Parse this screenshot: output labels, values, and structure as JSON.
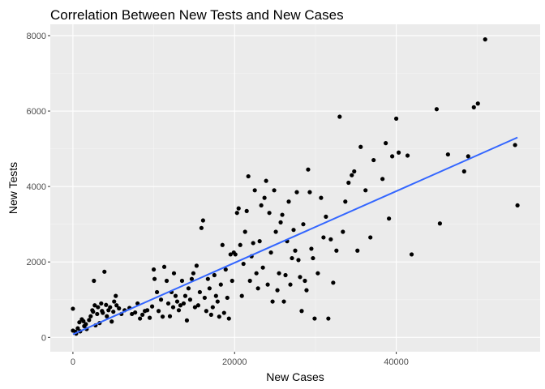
{
  "chart_data": {
    "type": "scatter",
    "title": "Correlation Between New Tests and New Cases",
    "xlabel": "New Cases",
    "ylabel": "New Tests",
    "xlim": [
      -2800,
      57800
    ],
    "ylim": [
      -380,
      8300
    ],
    "x_ticks": [
      0,
      20000,
      40000
    ],
    "x_tick_labels": [
      "0",
      "20000",
      "40000"
    ],
    "y_ticks": [
      0,
      2000,
      4000,
      6000,
      8000
    ],
    "y_tick_labels": [
      "0",
      "2000",
      "4000",
      "6000",
      "8000"
    ],
    "grid": true,
    "legend": "none",
    "colors": {
      "panel": "#ebebeb",
      "grid_major": "#ffffff",
      "points": "#000000",
      "trend_line": "#3366ff"
    },
    "trend_line": {
      "x": [
        0,
        55000
      ],
      "y": [
        80,
        5300
      ]
    },
    "points": [
      [
        0,
        760
      ],
      [
        0,
        180
      ],
      [
        300,
        150
      ],
      [
        400,
        100
      ],
      [
        600,
        240
      ],
      [
        800,
        400
      ],
      [
        900,
        160
      ],
      [
        1100,
        480
      ],
      [
        1300,
        430
      ],
      [
        1400,
        300
      ],
      [
        1600,
        350
      ],
      [
        1700,
        220
      ],
      [
        2000,
        460
      ],
      [
        2200,
        560
      ],
      [
        2400,
        720
      ],
      [
        2500,
        680
      ],
      [
        2600,
        1500
      ],
      [
        2700,
        850
      ],
      [
        2800,
        320
      ],
      [
        3000,
        620
      ],
      [
        3100,
        800
      ],
      [
        3300,
        380
      ],
      [
        3500,
        900
      ],
      [
        3600,
        700
      ],
      [
        3700,
        650
      ],
      [
        3900,
        1740
      ],
      [
        4100,
        860
      ],
      [
        4200,
        560
      ],
      [
        4400,
        720
      ],
      [
        4600,
        800
      ],
      [
        4800,
        420
      ],
      [
        5000,
        680
      ],
      [
        5100,
        950
      ],
      [
        5300,
        1100
      ],
      [
        5400,
        850
      ],
      [
        5700,
        770
      ],
      [
        6000,
        620
      ],
      [
        6400,
        720
      ],
      [
        7000,
        780
      ],
      [
        7300,
        620
      ],
      [
        7700,
        660
      ],
      [
        8000,
        900
      ],
      [
        8300,
        500
      ],
      [
        8600,
        600
      ],
      [
        8900,
        700
      ],
      [
        9200,
        720
      ],
      [
        9500,
        520
      ],
      [
        9800,
        820
      ],
      [
        10000,
        1800
      ],
      [
        10100,
        1550
      ],
      [
        10400,
        1200
      ],
      [
        10600,
        700
      ],
      [
        10900,
        1000
      ],
      [
        11100,
        550
      ],
      [
        11300,
        1870
      ],
      [
        11600,
        1500
      ],
      [
        11800,
        900
      ],
      [
        12000,
        560
      ],
      [
        12200,
        1200
      ],
      [
        12400,
        800
      ],
      [
        12500,
        1700
      ],
      [
        12700,
        1100
      ],
      [
        12900,
        950
      ],
      [
        13100,
        720
      ],
      [
        13300,
        850
      ],
      [
        13500,
        1500
      ],
      [
        13700,
        900
      ],
      [
        13900,
        1100
      ],
      [
        14100,
        450
      ],
      [
        14300,
        1300
      ],
      [
        14500,
        1000
      ],
      [
        14700,
        1550
      ],
      [
        14900,
        1700
      ],
      [
        15100,
        800
      ],
      [
        15300,
        1900
      ],
      [
        15500,
        850
      ],
      [
        15700,
        1200
      ],
      [
        15900,
        2900
      ],
      [
        16100,
        3100
      ],
      [
        16300,
        1050
      ],
      [
        16500,
        700
      ],
      [
        16700,
        1550
      ],
      [
        16900,
        1300
      ],
      [
        17100,
        600
      ],
      [
        17300,
        800
      ],
      [
        17500,
        1650
      ],
      [
        17700,
        1100
      ],
      [
        17900,
        950
      ],
      [
        18100,
        550
      ],
      [
        18300,
        1400
      ],
      [
        18500,
        2450
      ],
      [
        18700,
        650
      ],
      [
        18900,
        1800
      ],
      [
        19100,
        1050
      ],
      [
        19300,
        500
      ],
      [
        19500,
        2200
      ],
      [
        19700,
        1500
      ],
      [
        19900,
        2250
      ],
      [
        20100,
        2200
      ],
      [
        20300,
        3300
      ],
      [
        20500,
        3420
      ],
      [
        20700,
        2450
      ],
      [
        20900,
        1100
      ],
      [
        21100,
        1950
      ],
      [
        21300,
        2800
      ],
      [
        21500,
        3350
      ],
      [
        21700,
        4270
      ],
      [
        21900,
        1500
      ],
      [
        22100,
        2150
      ],
      [
        22300,
        2500
      ],
      [
        22500,
        3900
      ],
      [
        22700,
        1700
      ],
      [
        22900,
        1300
      ],
      [
        23100,
        2550
      ],
      [
        23300,
        3500
      ],
      [
        23500,
        1850
      ],
      [
        23700,
        3700
      ],
      [
        23900,
        4150
      ],
      [
        24100,
        1400
      ],
      [
        24300,
        3300
      ],
      [
        24500,
        2250
      ],
      [
        24700,
        950
      ],
      [
        24900,
        3900
      ],
      [
        25100,
        2800
      ],
      [
        25300,
        1250
      ],
      [
        25500,
        1700
      ],
      [
        25700,
        3050
      ],
      [
        25900,
        3250
      ],
      [
        26100,
        950
      ],
      [
        26300,
        1650
      ],
      [
        26500,
        2550
      ],
      [
        26700,
        3600
      ],
      [
        26900,
        1400
      ],
      [
        27100,
        2100
      ],
      [
        27300,
        2850
      ],
      [
        27500,
        2300
      ],
      [
        27700,
        3850
      ],
      [
        27900,
        2050
      ],
      [
        28100,
        1600
      ],
      [
        28300,
        700
      ],
      [
        28500,
        3000
      ],
      [
        28700,
        1500
      ],
      [
        28900,
        1250
      ],
      [
        29100,
        4450
      ],
      [
        29300,
        3850
      ],
      [
        29500,
        2350
      ],
      [
        29700,
        2100
      ],
      [
        29900,
        500
      ],
      [
        30300,
        1700
      ],
      [
        30700,
        3700
      ],
      [
        31000,
        2650
      ],
      [
        31300,
        3200
      ],
      [
        31600,
        500
      ],
      [
        31900,
        2600
      ],
      [
        32200,
        1450
      ],
      [
        32600,
        2300
      ],
      [
        33000,
        5850
      ],
      [
        33400,
        2800
      ],
      [
        33700,
        3600
      ],
      [
        34100,
        4100
      ],
      [
        34500,
        4300
      ],
      [
        34800,
        4400
      ],
      [
        35200,
        2300
      ],
      [
        35600,
        5050
      ],
      [
        36200,
        3900
      ],
      [
        36800,
        2650
      ],
      [
        37200,
        4700
      ],
      [
        38300,
        4200
      ],
      [
        38700,
        5150
      ],
      [
        39100,
        3150
      ],
      [
        39500,
        4800
      ],
      [
        40000,
        5800
      ],
      [
        40300,
        4900
      ],
      [
        41400,
        4820
      ],
      [
        41900,
        2200
      ],
      [
        45000,
        6050
      ],
      [
        45400,
        3020
      ],
      [
        46400,
        4850
      ],
      [
        48400,
        4400
      ],
      [
        48900,
        4800
      ],
      [
        49600,
        6100
      ],
      [
        50100,
        6200
      ],
      [
        51000,
        7900
      ],
      [
        54700,
        5100
      ],
      [
        55000,
        3500
      ]
    ]
  }
}
